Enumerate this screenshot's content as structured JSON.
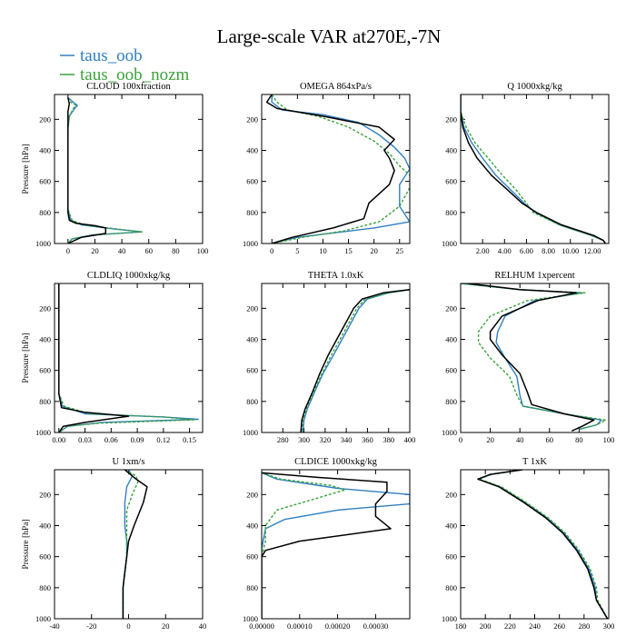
{
  "figure": {
    "title": "Large-scale VAR at270E,-7N",
    "legend": [
      {
        "name": "taus_oob",
        "color": "#2f7fc1",
        "dash": "solid"
      },
      {
        "name": "taus_oob_nozm",
        "color": "#3aa23a",
        "dash": "dashed"
      }
    ],
    "reference_color": "#000000"
  },
  "chart_data": [
    {
      "type": "line",
      "title": "CLOUD  100xfraction",
      "ylabel": "Pressure [hPa]",
      "xlim": [
        -10,
        100
      ],
      "ylim": [
        1000,
        40
      ],
      "xticks": [
        0,
        20,
        40,
        60,
        80,
        100
      ],
      "xtick_labels": [
        "0",
        "20",
        "40",
        "60",
        "80",
        "100"
      ],
      "yticks": [
        200,
        400,
        600,
        800,
        1000
      ],
      "series": [
        {
          "name": "taus_oob",
          "x": [
            0,
            4,
            7,
            5,
            1,
            0,
            0,
            0,
            0,
            2,
            10,
            33,
            55,
            18,
            3,
            0
          ],
          "y": [
            60,
            90,
            110,
            130,
            180,
            260,
            400,
            600,
            780,
            850,
            880,
            905,
            925,
            945,
            970,
            1000
          ]
        },
        {
          "name": "taus_oob_nozm",
          "x": [
            0,
            2,
            6,
            4,
            1,
            0,
            0,
            0,
            0,
            3,
            12,
            35,
            55,
            20,
            3,
            0
          ],
          "y": [
            60,
            90,
            110,
            130,
            180,
            260,
            400,
            600,
            780,
            850,
            880,
            905,
            925,
            945,
            970,
            1000
          ]
        },
        {
          "name": "reference",
          "x": [
            0,
            1,
            0,
            0,
            0,
            0,
            1,
            6,
            20,
            28,
            28,
            10,
            0
          ],
          "y": [
            60,
            100,
            150,
            300,
            600,
            800,
            850,
            870,
            885,
            900,
            935,
            960,
            1000
          ]
        }
      ]
    },
    {
      "type": "line",
      "title": "OMEGA  864xPa/s",
      "ylabel": "",
      "xlim": [
        -2,
        27
      ],
      "ylim": [
        1000,
        40
      ],
      "xticks": [
        0,
        5,
        10,
        15,
        20,
        25
      ],
      "xtick_labels": [
        "0",
        "5",
        "10",
        "15",
        "20",
        "25"
      ],
      "yticks": [
        200,
        400,
        600,
        800,
        1000
      ],
      "series": [
        {
          "name": "taus_oob",
          "x": [
            0,
            0,
            2,
            10,
            17,
            21,
            24,
            26,
            27,
            25,
            25,
            27,
            20,
            5,
            0
          ],
          "y": [
            40,
            90,
            140,
            170,
            220,
            300,
            380,
            450,
            520,
            620,
            760,
            860,
            900,
            960,
            1000
          ]
        },
        {
          "name": "taus_oob_nozm",
          "x": [
            0,
            1,
            3,
            9,
            15,
            20,
            23,
            25,
            27,
            27,
            25,
            21,
            14,
            6,
            0
          ],
          "y": [
            40,
            90,
            140,
            180,
            250,
            340,
            420,
            500,
            560,
            640,
            760,
            860,
            920,
            960,
            1000
          ]
        },
        {
          "name": "reference",
          "x": [
            0,
            -1,
            1,
            10,
            21,
            24,
            22,
            23,
            24,
            23,
            19,
            18,
            12,
            4,
            0
          ],
          "y": [
            40,
            90,
            130,
            180,
            250,
            330,
            400,
            450,
            530,
            620,
            740,
            840,
            900,
            960,
            1000
          ]
        }
      ]
    },
    {
      "type": "line",
      "title": "Q  1000xkg/kg",
      "ylabel": "",
      "xlim": [
        0,
        13.5
      ],
      "ylim": [
        1000,
        40
      ],
      "xticks": [
        2,
        4,
        6,
        8,
        10,
        12
      ],
      "xtick_labels": [
        "2.00",
        "4.00",
        "6.00",
        "8.00",
        "10.00",
        "12.00"
      ],
      "yticks": [
        200,
        400,
        600,
        800,
        1000
      ],
      "series": [
        {
          "name": "taus_oob",
          "x": [
            0,
            0,
            0.3,
            1,
            2,
            3.2,
            4.5,
            5.8,
            6.8,
            9,
            12,
            13,
            13.2
          ],
          "y": [
            40,
            150,
            250,
            350,
            450,
            560,
            650,
            740,
            800,
            880,
            950,
            980,
            1000
          ]
        },
        {
          "name": "taus_oob_nozm",
          "x": [
            0,
            0,
            0.5,
            1.3,
            2.5,
            3.8,
            5,
            6,
            6.6,
            9,
            12,
            13,
            13.2
          ],
          "y": [
            40,
            150,
            250,
            350,
            450,
            560,
            650,
            740,
            800,
            880,
            950,
            980,
            1000
          ]
        },
        {
          "name": "reference",
          "x": [
            0,
            0,
            0.2,
            0.7,
            1.5,
            2.8,
            4.2,
            5.6,
            6.9,
            9.2,
            12.2,
            13,
            13.2
          ],
          "y": [
            40,
            150,
            250,
            350,
            450,
            560,
            650,
            740,
            800,
            880,
            950,
            980,
            1000
          ]
        }
      ]
    },
    {
      "type": "line",
      "title": "CLDLIQ  1000xkg/kg",
      "ylabel": "Pressure [hPa]",
      "xlim": [
        -0.005,
        0.165
      ],
      "ylim": [
        1000,
        40
      ],
      "xticks": [
        0,
        0.03,
        0.06,
        0.09,
        0.12,
        0.15
      ],
      "xtick_labels": [
        "0.00",
        "0.03",
        "0.06",
        "0.09",
        "0.12",
        "0.15"
      ],
      "yticks": [
        200,
        400,
        600,
        800,
        1000
      ],
      "series": [
        {
          "name": "taus_oob",
          "x": [
            0,
            0,
            0,
            0.004,
            0.03,
            0.12,
            0.16,
            0.05,
            0.01,
            0
          ],
          "y": [
            40,
            400,
            750,
            830,
            880,
            900,
            915,
            935,
            960,
            1000
          ]
        },
        {
          "name": "taus_oob_nozm",
          "x": [
            0,
            0,
            0,
            0.006,
            0.035,
            0.12,
            0.155,
            0.045,
            0.01,
            0
          ],
          "y": [
            40,
            400,
            750,
            830,
            880,
            900,
            918,
            940,
            960,
            1000
          ]
        },
        {
          "name": "reference",
          "x": [
            0,
            0,
            0,
            0.003,
            0.03,
            0.08,
            0.03,
            0.005,
            0
          ],
          "y": [
            40,
            400,
            750,
            840,
            870,
            895,
            935,
            960,
            1000
          ]
        }
      ]
    },
    {
      "type": "line",
      "title": "THETA  1.0xK",
      "ylabel": "",
      "xlim": [
        260,
        400
      ],
      "ylim": [
        1000,
        40
      ],
      "xticks": [
        280,
        300,
        320,
        340,
        360,
        380,
        400
      ],
      "xtick_labels": [
        "280",
        "300",
        "320",
        "340",
        "360",
        "380",
        "400"
      ],
      "yticks": [
        200,
        400,
        600,
        800,
        1000
      ],
      "series": [
        {
          "name": "taus_oob",
          "x": [
            400,
            380,
            360,
            352,
            344,
            336,
            328,
            318,
            310,
            303,
            300,
            299
          ],
          "y": [
            80,
            100,
            140,
            200,
            300,
            400,
            500,
            620,
            740,
            850,
            920,
            1000
          ]
        },
        {
          "name": "taus_oob_nozm",
          "x": [
            400,
            380,
            358,
            350,
            342,
            334,
            326,
            317,
            309,
            302,
            299,
            298
          ],
          "y": [
            80,
            100,
            140,
            200,
            300,
            400,
            500,
            620,
            740,
            850,
            920,
            1000
          ]
        },
        {
          "name": "reference",
          "x": [
            400,
            375,
            355,
            347,
            339,
            331,
            323,
            315,
            308,
            301,
            298,
            297
          ],
          "y": [
            80,
            100,
            140,
            200,
            300,
            400,
            500,
            620,
            740,
            850,
            920,
            1000
          ]
        }
      ]
    },
    {
      "type": "line",
      "title": "RELHUM  1xpercent",
      "ylabel": "",
      "xlim": [
        0,
        100
      ],
      "ylim": [
        1000,
        40
      ],
      "xticks": [
        0,
        20,
        40,
        60,
        80,
        100
      ],
      "xtick_labels": [
        "0",
        "20",
        "40",
        "60",
        "80",
        "100"
      ],
      "yticks": [
        200,
        400,
        600,
        800,
        1000
      ],
      "series": [
        {
          "name": "taus_oob",
          "x": [
            0,
            40,
            82,
            50,
            30,
            25,
            24,
            30,
            38,
            40,
            42,
            70,
            95,
            92,
            80
          ],
          "y": [
            40,
            80,
            100,
            150,
            250,
            350,
            420,
            520,
            640,
            760,
            830,
            880,
            920,
            950,
            980
          ]
        },
        {
          "name": "taus_oob_nozm",
          "x": [
            0,
            40,
            84,
            45,
            20,
            12,
            12,
            20,
            33,
            38,
            42,
            70,
            98,
            92,
            80
          ],
          "y": [
            40,
            80,
            100,
            150,
            250,
            350,
            420,
            520,
            640,
            760,
            830,
            880,
            920,
            950,
            980
          ]
        },
        {
          "name": "reference",
          "x": [
            5,
            40,
            78,
            52,
            28,
            20,
            20,
            28,
            40,
            45,
            48,
            70,
            90,
            82,
            75
          ],
          "y": [
            40,
            80,
            100,
            150,
            250,
            350,
            400,
            500,
            620,
            740,
            820,
            880,
            920,
            960,
            990
          ]
        }
      ]
    },
    {
      "type": "line",
      "title": "U  1xm/s",
      "ylabel": "Pressure [hPa]",
      "xlim": [
        -40,
        40
      ],
      "ylim": [
        1000,
        40
      ],
      "xticks": [
        -40,
        -20,
        0,
        20,
        40
      ],
      "xtick_labels": [
        "-40",
        "-20",
        "0",
        "20",
        "40"
      ],
      "yticks": [
        200,
        400,
        600,
        800,
        1000
      ],
      "series": [
        {
          "name": "taus_oob",
          "x": [
            0,
            2,
            -1,
            -2,
            -2,
            -1,
            -1,
            -2,
            -3,
            -3,
            -3,
            -3
          ],
          "y": [
            40,
            80,
            150,
            250,
            400,
            500,
            600,
            700,
            800,
            900,
            950,
            1000
          ]
        },
        {
          "name": "taus_oob_nozm",
          "x": [
            -2,
            4,
            5,
            2,
            -1,
            -1,
            -1,
            -2,
            -3,
            -3,
            -3,
            -3
          ],
          "y": [
            40,
            80,
            120,
            200,
            300,
            450,
            600,
            700,
            800,
            900,
            950,
            1000
          ]
        },
        {
          "name": "reference",
          "x": [
            -2,
            0,
            4,
            10,
            8,
            3,
            0,
            -1,
            -2,
            -3,
            -3,
            -3,
            -3
          ],
          "y": [
            40,
            60,
            100,
            150,
            250,
            400,
            500,
            600,
            700,
            800,
            900,
            950,
            1000
          ]
        }
      ]
    },
    {
      "type": "line",
      "title": "CLDICE  1000xkg/kg",
      "ylabel": "",
      "xlim": [
        0,
        0.00039
      ],
      "ylim": [
        1000,
        40
      ],
      "xticks": [
        0,
        0.0001,
        0.0002,
        0.0003
      ],
      "xtick_labels": [
        "0.00000",
        "0.00010",
        "0.00020",
        "0.00030"
      ],
      "yticks": [
        200,
        400,
        600,
        800,
        1000
      ],
      "series": [
        {
          "name": "taus_oob",
          "x": [
            0,
            4e-05,
            0.0002,
            0.00039,
            0.00039,
            0.0002,
            6e-05,
            1e-05,
            0,
            0
          ],
          "y": [
            60,
            100,
            160,
            200,
            260,
            300,
            360,
            420,
            550,
            1000
          ]
        },
        {
          "name": "taus_oob_nozm",
          "x": [
            0,
            5e-05,
            0.00018,
            0.00022,
            0.00015,
            4e-05,
            1e-05,
            1e-05,
            0,
            0
          ],
          "y": [
            60,
            100,
            140,
            170,
            220,
            300,
            400,
            500,
            600,
            1000
          ]
        },
        {
          "name": "reference",
          "x": [
            0,
            0.00015,
            0.00033,
            0.00033,
            0.0003,
            0.0003,
            0.00034,
            0.0001,
            1e-05,
            0,
            0
          ],
          "y": [
            60,
            90,
            120,
            180,
            260,
            340,
            420,
            500,
            560,
            600,
            1000
          ]
        }
      ]
    },
    {
      "type": "line",
      "title": "T  1xK",
      "ylabel": "",
      "xlim": [
        180,
        300
      ],
      "ylim": [
        1000,
        40
      ],
      "xticks": [
        180,
        200,
        220,
        240,
        260,
        280,
        300
      ],
      "xtick_labels": [
        "180",
        "200",
        "220",
        "240",
        "260",
        "280",
        "300"
      ],
      "yticks": [
        200,
        400,
        600,
        800,
        1000
      ],
      "series": [
        {
          "name": "taus_oob",
          "x": [
            230,
            205,
            194,
            212,
            232,
            250,
            264,
            275,
            284,
            289,
            290,
            299
          ],
          "y": [
            40,
            70,
            100,
            150,
            250,
            350,
            450,
            560,
            680,
            800,
            880,
            1000
          ]
        },
        {
          "name": "taus_oob_nozm",
          "x": [
            230,
            205,
            195,
            213,
            233,
            251,
            265,
            276,
            285,
            290,
            291,
            299
          ],
          "y": [
            40,
            70,
            100,
            150,
            250,
            350,
            450,
            560,
            680,
            800,
            880,
            1000
          ]
        },
        {
          "name": "reference",
          "x": [
            230,
            204,
            194,
            211,
            231,
            249,
            263,
            274,
            283,
            288,
            290,
            299
          ],
          "y": [
            40,
            70,
            100,
            150,
            250,
            350,
            450,
            560,
            680,
            800,
            880,
            1000
          ]
        }
      ]
    }
  ]
}
